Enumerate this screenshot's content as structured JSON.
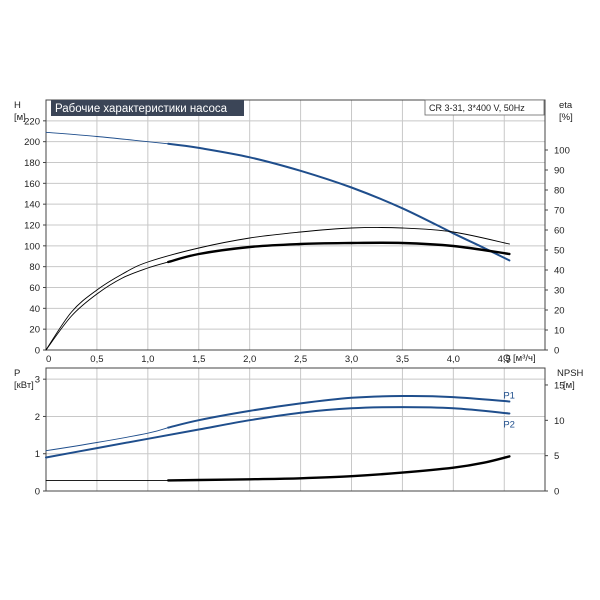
{
  "chart_data": [
    {
      "type": "line",
      "title": "Рабочие характеристики насоса",
      "subtitle": "CR 3-31, 3*400 V, 50Hz",
      "xlabel": "Q [м³/ч]",
      "ylabel_left_name": "H",
      "ylabel_left_unit": "[м]",
      "ylabel_right_name": "eta",
      "ylabel_right_unit": "[%]",
      "xlim": [
        0,
        4.9
      ],
      "ylim_left": [
        0,
        240
      ],
      "ylim_right": [
        0,
        125
      ],
      "grid": true,
      "x_ticks": [
        "0",
        "0,5",
        "1,0",
        "1,5",
        "2,0",
        "2,5",
        "3,0",
        "3,5",
        "4,0",
        "4,5"
      ],
      "y_ticks_left": [
        "0",
        "20",
        "40",
        "60",
        "80",
        "100",
        "120",
        "140",
        "160",
        "180",
        "200",
        "220"
      ],
      "y_ticks_right": [
        "0",
        "10",
        "20",
        "30",
        "40",
        "50",
        "60",
        "70",
        "80",
        "90",
        "100"
      ],
      "series": [
        {
          "axis": "left",
          "color": "#1f4e8c",
          "role": "H thin",
          "x": [
            0,
            0.5,
            1.0,
            1.2
          ],
          "y": [
            209,
            205,
            200,
            198
          ]
        },
        {
          "axis": "left",
          "color": "#1f4e8c",
          "role": "H",
          "x": [
            1.2,
            1.5,
            2.0,
            2.5,
            3.0,
            3.5,
            4.0,
            4.3,
            4.55
          ],
          "y": [
            198,
            194,
            185,
            172,
            156,
            136,
            112,
            98,
            86
          ]
        },
        {
          "axis": "right",
          "color": "#000000",
          "role": "eta thin",
          "x": [
            0,
            0.25,
            0.5,
            0.75,
            1.0,
            1.2
          ],
          "y": [
            0,
            17,
            28,
            36,
            41,
            44
          ]
        },
        {
          "axis": "right",
          "color": "#000000",
          "role": "eta",
          "x": [
            1.2,
            1.5,
            2.0,
            2.5,
            3.0,
            3.5,
            4.0,
            4.55
          ],
          "y": [
            44,
            48,
            51.5,
            53,
            53.5,
            53.5,
            52,
            48
          ]
        },
        {
          "axis": "right",
          "color": "#000000",
          "role": "eta upper",
          "x": [
            0,
            0.25,
            0.5,
            0.75,
            1.0,
            1.5,
            2.0,
            2.5,
            3.0,
            3.5,
            4.0,
            4.55
          ],
          "y": [
            0,
            19,
            30,
            38,
            44,
            51,
            56,
            59,
            61,
            61,
            59,
            53
          ]
        }
      ]
    },
    {
      "type": "line",
      "xlabel": "",
      "ylabel_left_name": "P",
      "ylabel_left_unit": "[кВт]",
      "ylabel_right_name": "NPSH",
      "ylabel_right_unit": "[м]",
      "xlim": [
        0,
        4.9
      ],
      "ylim_left": [
        0,
        3.3
      ],
      "ylim_right": [
        0,
        17.4
      ],
      "grid": true,
      "x_ticks": [
        "0",
        "0,5",
        "1,0",
        "1,5",
        "2,0",
        "2,5",
        "3,0",
        "3,5",
        "4,0",
        "4,5"
      ],
      "y_ticks_left": [
        "0",
        "1",
        "2",
        "3"
      ],
      "y_ticks_right": [
        "0",
        "5",
        "10",
        "15"
      ],
      "series": [
        {
          "axis": "left",
          "color": "#1f4e8c",
          "role": "P1 thin",
          "x": [
            0,
            0.5,
            1.0,
            1.2
          ],
          "y": [
            1.08,
            1.3,
            1.55,
            1.7
          ]
        },
        {
          "axis": "left",
          "name": "P1",
          "color": "#1f4e8c",
          "role": "P1",
          "x": [
            1.2,
            1.5,
            2.0,
            2.5,
            3.0,
            3.5,
            4.0,
            4.55
          ],
          "y": [
            1.7,
            1.9,
            2.15,
            2.35,
            2.5,
            2.55,
            2.52,
            2.4
          ]
        },
        {
          "axis": "left",
          "name": "P2",
          "color": "#1f4e8c",
          "role": "P2",
          "x": [
            0,
            0.5,
            1.0,
            1.5,
            2.0,
            2.5,
            3.0,
            3.5,
            4.0,
            4.55
          ],
          "y": [
            0.9,
            1.15,
            1.4,
            1.65,
            1.9,
            2.1,
            2.22,
            2.25,
            2.22,
            2.08
          ]
        },
        {
          "axis": "right",
          "color": "#000000",
          "role": "NPSH thin",
          "x": [
            0,
            0.5,
            1.0,
            1.2
          ],
          "y": [
            1.5,
            1.5,
            1.5,
            1.5
          ]
        },
        {
          "axis": "right",
          "color": "#000000",
          "role": "NPSH",
          "x": [
            1.2,
            1.5,
            2.0,
            2.5,
            3.0,
            3.5,
            4.0,
            4.3,
            4.55
          ],
          "y": [
            1.5,
            1.55,
            1.65,
            1.8,
            2.1,
            2.6,
            3.3,
            4.0,
            4.9
          ]
        }
      ]
    }
  ]
}
